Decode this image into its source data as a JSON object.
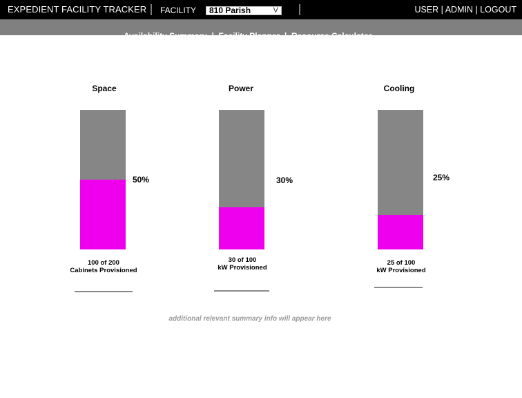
{
  "header": {
    "app_title": "EXPEDIENT FACILITY TRACKER",
    "facility_label": "FACILITY",
    "facility_selected": "810 Parish",
    "facility_chevron": "V",
    "user_link": "USER",
    "admin_link": "ADMIN",
    "logout_link": "LOGOUT",
    "separator": " | "
  },
  "subnav": {
    "items": [
      "Availability Summary",
      "Facility Planner",
      "Resource Calculator"
    ],
    "separator": "  |  "
  },
  "metrics": [
    {
      "title": "Space",
      "percent_label": "50%",
      "fill_fraction": 0.5,
      "caption_line1": "100 of 200",
      "caption_line2": "Cabinets Provisioned"
    },
    {
      "title": "Power",
      "percent_label": "30%",
      "fill_fraction": 0.3,
      "caption_line1": "30 of 100",
      "caption_line2": "kW Provisioned"
    },
    {
      "title": "Cooling",
      "percent_label": "25%",
      "fill_fraction": 0.25,
      "caption_line1": "25 of 100",
      "caption_line2": "kW Provisioned"
    }
  ],
  "footnote": "additional relevant summary info will appear here",
  "colors": {
    "provisioned": "#ee00ee",
    "available": "#868686",
    "topbar": "#000000",
    "subnav": "#808080"
  }
}
